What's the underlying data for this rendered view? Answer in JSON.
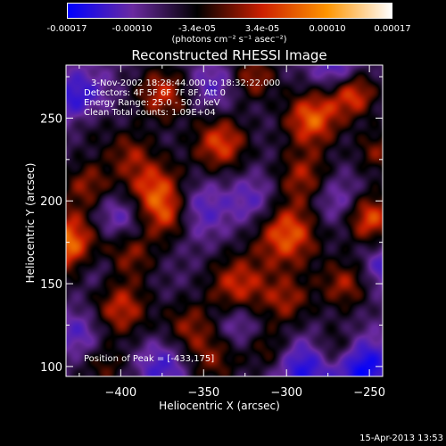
{
  "colorbar": {
    "ticks": [
      "-0.00017",
      "-0.00010",
      "-3.4e-05",
      "3.4e-05",
      "0.00010",
      "0.00017"
    ],
    "unit": "(photons cm⁻² s⁻¹ asec⁻²)",
    "colors": [
      "#0000ff",
      "#6a2aa0",
      "#000000",
      "#cc1f00",
      "#ff9500",
      "#ffffff"
    ]
  },
  "chart_data": {
    "type": "heatmap",
    "title": "Reconstructed RHESSI Image",
    "xlabel": "Heliocentric X (arcsec)",
    "ylabel": "Heliocentric Y (arcsec)",
    "xlim": [
      -433,
      -242
    ],
    "ylim": [
      94,
      282
    ],
    "xticks": [
      -400,
      -350,
      -300,
      -250
    ],
    "yticks": [
      100,
      150,
      200,
      250
    ],
    "annotations": [
      "3-Nov-2002 18:28:44.000 to 18:32:22.000",
      "Detectors: 4F 5F 6F 7F 8F, Att 0",
      "Energy Range: 25.0 - 50.0 keV",
      "Clean    Total counts: 1.09E+04"
    ],
    "peak_label": "Position of Peak = [-433,175]",
    "peak": [
      -433,
      175
    ]
  },
  "footer": "15-Apr-2013 13:53"
}
